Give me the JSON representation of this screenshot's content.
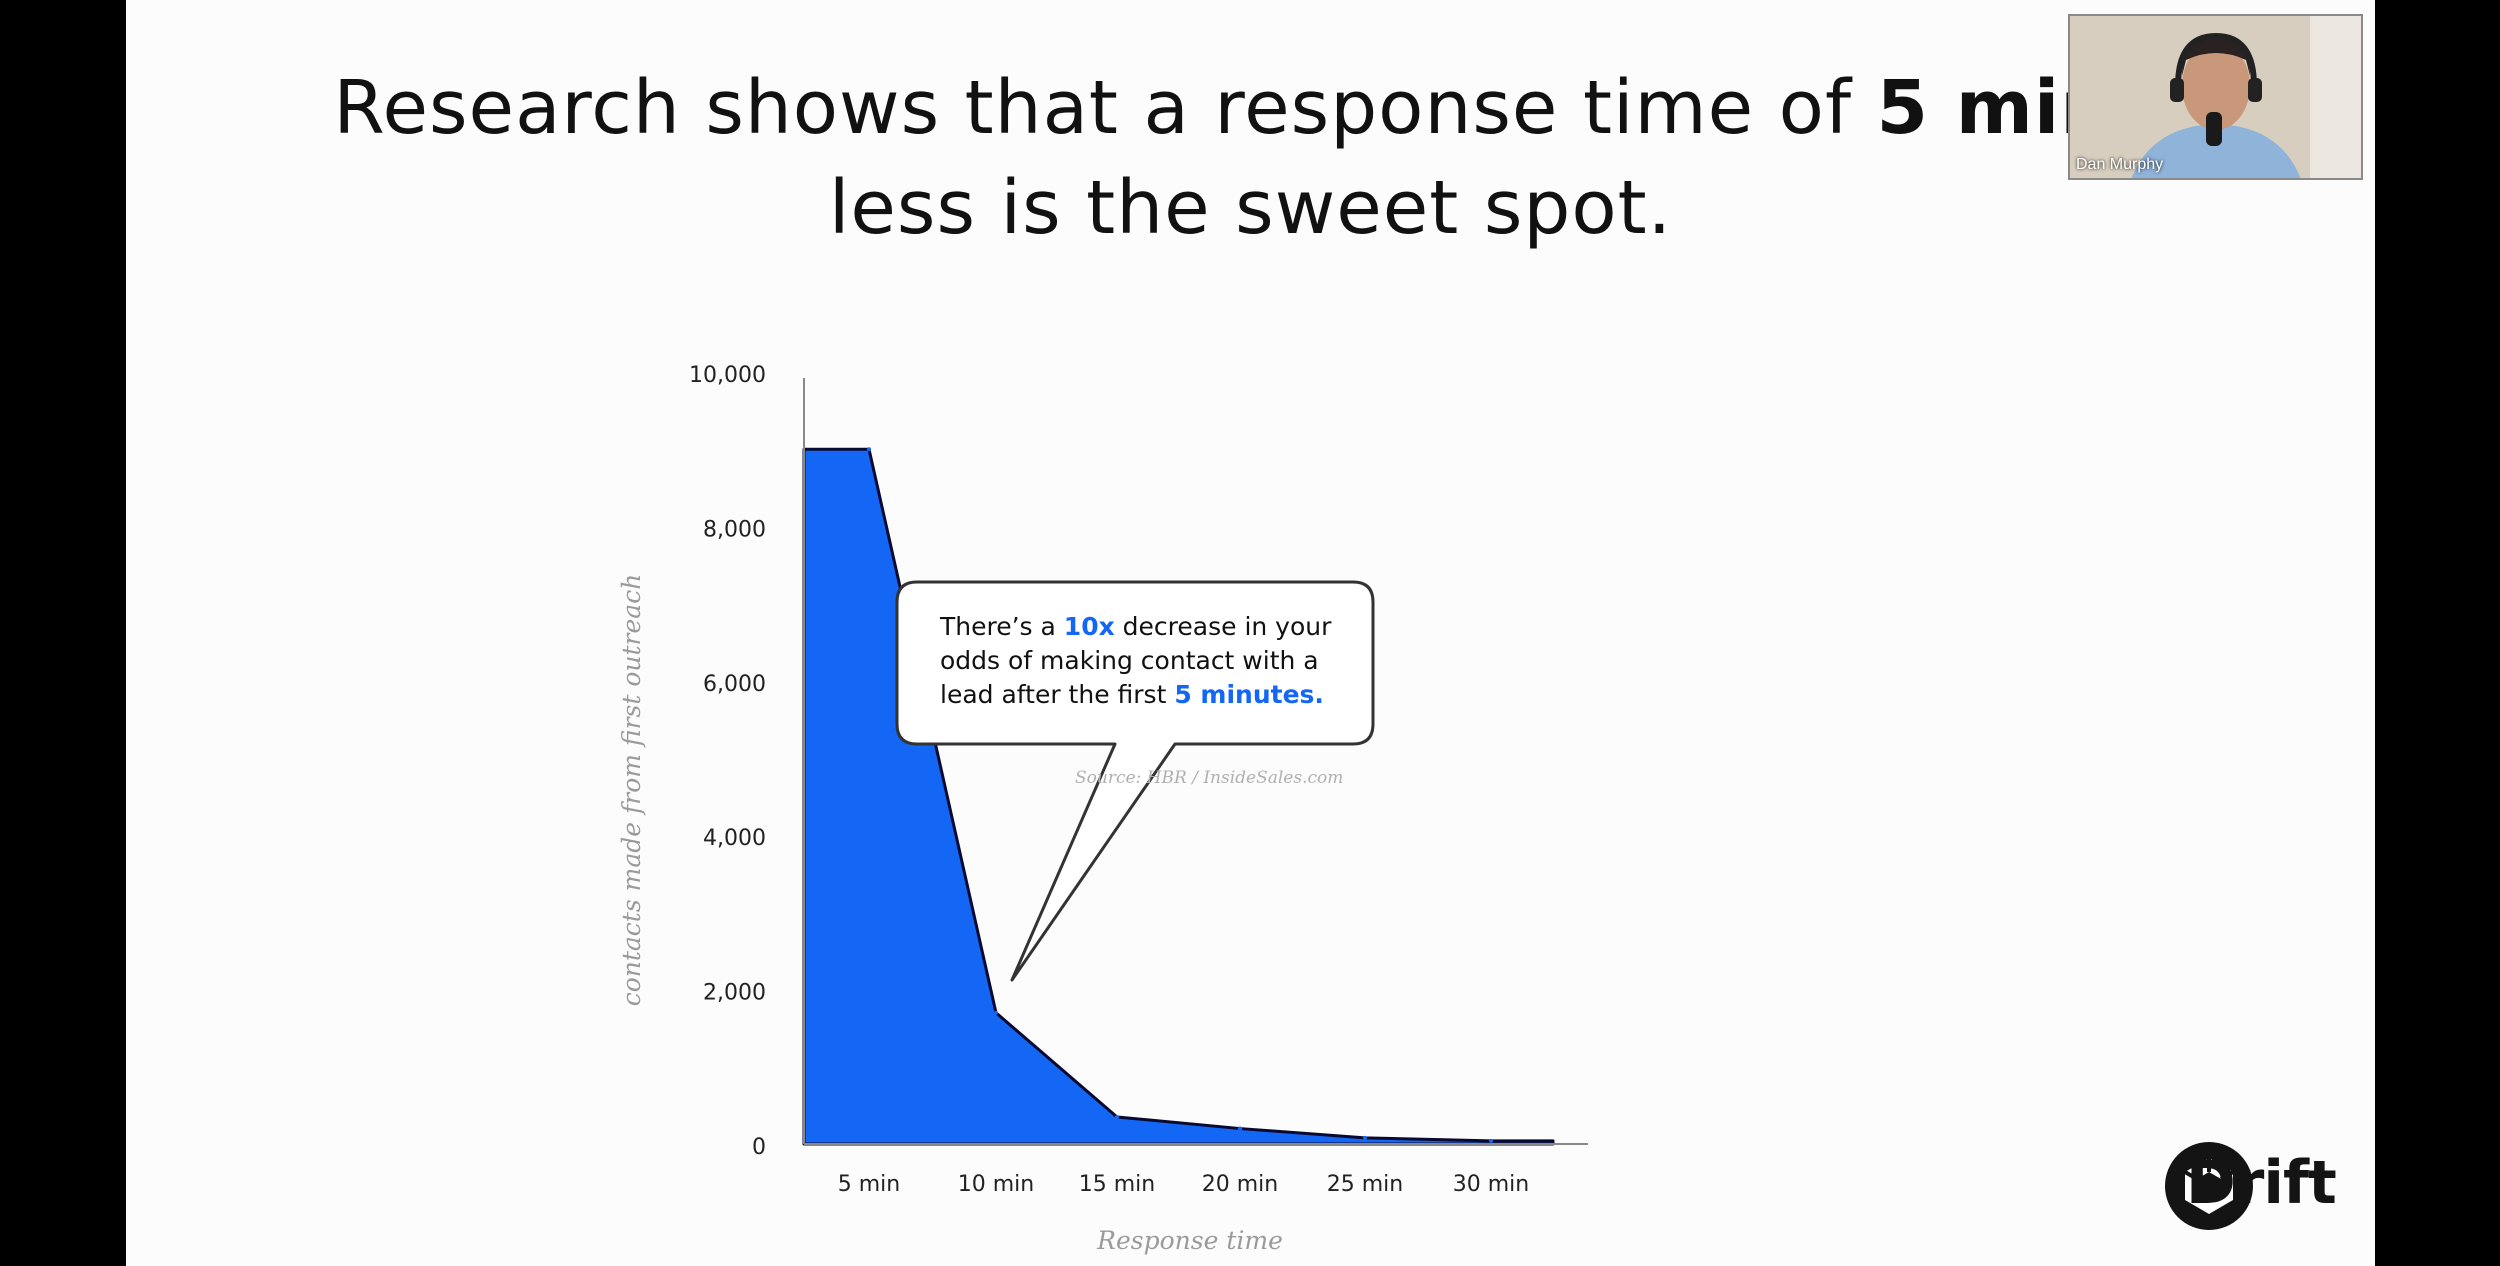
{
  "slide": {
    "title_line1_pre": "Research shows that a response time of ",
    "title_line1_bold": "5 minu",
    "title_line2": "less is the sweet spot."
  },
  "callout": {
    "part1": "There’s a ",
    "hl1": "10x",
    "part2": " decrease in your odds of making contact with a lead after the first ",
    "hl2": "5 minutes.",
    "source": "Source: HBR / InsideSales.com"
  },
  "webcam": {
    "name": "Dan Murphy"
  },
  "logo": {
    "text": "Drift"
  },
  "colors": {
    "accent": "#1466f5",
    "area": "#1466f5",
    "text": "#111111",
    "axis_text": "#222222"
  },
  "chart_data": {
    "type": "area",
    "title": "",
    "xlabel": "Response time",
    "ylabel": "contacts made from first outreach",
    "ylim": [
      0,
      10000
    ],
    "y_ticks": [
      "0",
      "2,000",
      "4,000",
      "6,000",
      "8,000",
      "10,000"
    ],
    "categories": [
      "5 min",
      "10 min",
      "15 min",
      "20 min",
      "25 min",
      "30 min"
    ],
    "series": [
      {
        "values": [
          9000,
          1700,
          350,
          200,
          80,
          40
        ]
      }
    ],
    "grid": false,
    "legend": "none"
  }
}
